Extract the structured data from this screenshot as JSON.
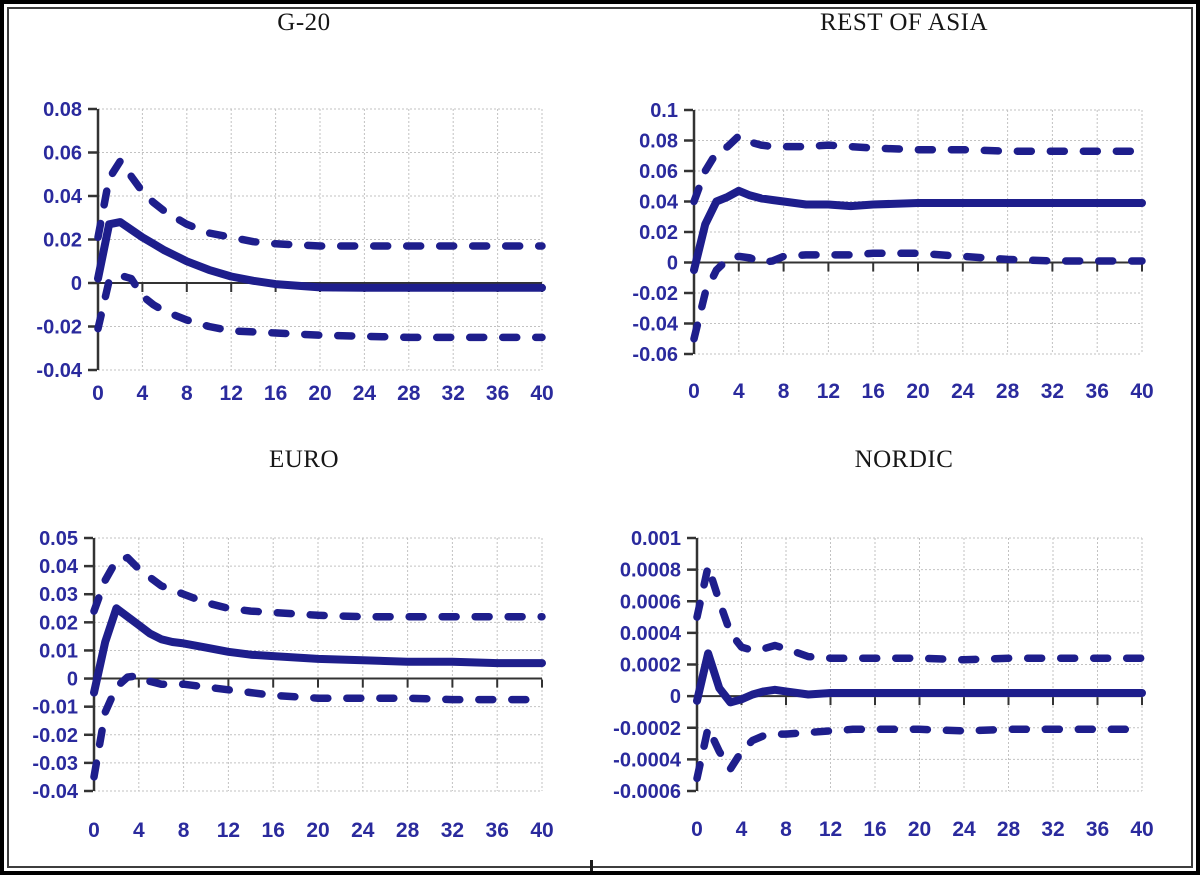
{
  "colors": {
    "line_navy": "#1e1e8c",
    "tick_label_navy": "#2a2a9d",
    "title_black": "#161616",
    "grid_gray": "#c2c2c2",
    "axis_gray": "#333333"
  },
  "chart_data": [
    {
      "type": "line",
      "title": "G-20",
      "xlabel": "",
      "ylabel": "",
      "xlim": [
        0,
        40
      ],
      "ylim": [
        -0.04,
        0.08
      ],
      "xticks": [
        0,
        4,
        8,
        12,
        16,
        20,
        24,
        28,
        32,
        36,
        40
      ],
      "xtick_labels": [
        "0",
        "4",
        "8",
        "12",
        "16",
        "20",
        "24",
        "28",
        "32",
        "36",
        "40"
      ],
      "yticks": [
        0.08,
        0.06,
        0.04,
        0.02,
        0,
        -0.02,
        -0.04
      ],
      "ytick_labels": [
        "0.08",
        "0.06",
        "0.04",
        "0.02",
        "0",
        "-0.02",
        "-0.04"
      ],
      "grid": true,
      "legend": "none",
      "x": [
        0,
        1,
        2,
        3,
        4,
        5,
        6,
        7,
        8,
        10,
        12,
        14,
        16,
        20,
        24,
        28,
        32,
        36,
        40
      ],
      "series": [
        {
          "name": "central",
          "style": "solid",
          "values": [
            0.002,
            0.027,
            0.028,
            0.0245,
            0.021,
            0.018,
            0.015,
            0.0125,
            0.01,
            0.006,
            0.003,
            0.001,
            -0.0005,
            -0.002,
            -0.0022,
            -0.0022,
            -0.0022,
            -0.0022,
            -0.0022
          ]
        },
        {
          "name": "upper",
          "style": "dashed",
          "values": [
            0.021,
            0.048,
            0.056,
            0.049,
            0.042,
            0.037,
            0.033,
            0.03,
            0.027,
            0.023,
            0.021,
            0.019,
            0.018,
            0.017,
            0.017,
            0.017,
            0.017,
            0.017,
            0.017
          ]
        },
        {
          "name": "lower",
          "style": "dashed",
          "values": [
            -0.021,
            0.001,
            0.0035,
            0.002,
            -0.006,
            -0.01,
            -0.013,
            -0.015,
            -0.017,
            -0.02,
            -0.022,
            -0.0225,
            -0.023,
            -0.024,
            -0.0245,
            -0.025,
            -0.025,
            -0.025,
            -0.025
          ]
        }
      ]
    },
    {
      "type": "line",
      "title": "REST OF ASIA",
      "xlabel": "",
      "ylabel": "",
      "xlim": [
        0,
        40
      ],
      "ylim": [
        -0.06,
        0.1
      ],
      "xticks": [
        0,
        4,
        8,
        12,
        16,
        20,
        24,
        28,
        32,
        36,
        40
      ],
      "xtick_labels": [
        "0",
        "4",
        "8",
        "12",
        "16",
        "20",
        "24",
        "28",
        "32",
        "36",
        "40"
      ],
      "yticks": [
        0.1,
        0.08,
        0.06,
        0.04,
        0.02,
        0,
        -0.02,
        -0.04,
        -0.06
      ],
      "ytick_labels": [
        "0.1",
        "0.08",
        "0.06",
        "0.04",
        "0.02",
        "0",
        "-0.02",
        "-0.04",
        "-0.06"
      ],
      "grid": true,
      "legend": "none",
      "x": [
        0,
        1,
        2,
        3,
        4,
        5,
        6,
        7,
        8,
        10,
        12,
        14,
        16,
        20,
        24,
        28,
        32,
        36,
        40
      ],
      "series": [
        {
          "name": "central",
          "style": "solid",
          "values": [
            -0.005,
            0.025,
            0.04,
            0.043,
            0.047,
            0.044,
            0.042,
            0.041,
            0.04,
            0.038,
            0.038,
            0.037,
            0.038,
            0.039,
            0.039,
            0.039,
            0.039,
            0.039,
            0.039
          ]
        },
        {
          "name": "upper",
          "style": "dashed",
          "values": [
            0.04,
            0.06,
            0.072,
            0.076,
            0.083,
            0.079,
            0.077,
            0.076,
            0.076,
            0.076,
            0.077,
            0.076,
            0.075,
            0.074,
            0.074,
            0.073,
            0.073,
            0.073,
            0.073
          ]
        },
        {
          "name": "lower",
          "style": "dashed",
          "values": [
            -0.05,
            -0.02,
            -0.005,
            0.002,
            0.004,
            0.003,
            0.0,
            0.001,
            0.004,
            0.005,
            0.005,
            0.005,
            0.006,
            0.006,
            0.004,
            0.002,
            0.001,
            0.001,
            0.001
          ]
        }
      ]
    },
    {
      "type": "line",
      "title": "EURO",
      "xlabel": "",
      "ylabel": "",
      "xlim": [
        0,
        40
      ],
      "ylim": [
        -0.04,
        0.05
      ],
      "xticks": [
        0,
        4,
        8,
        12,
        16,
        20,
        24,
        28,
        32,
        36,
        40
      ],
      "xtick_labels": [
        "0",
        "4",
        "8",
        "12",
        "16",
        "20",
        "24",
        "28",
        "32",
        "36",
        "40"
      ],
      "yticks": [
        0.05,
        0.04,
        0.03,
        0.02,
        0.01,
        0,
        -0.01,
        -0.02,
        -0.03,
        -0.04
      ],
      "ytick_labels": [
        "0.05",
        "0.04",
        "0.03",
        "0.02",
        "0.01",
        "0",
        "-0.01",
        "-0.02",
        "-0.03",
        "-0.04"
      ],
      "grid": true,
      "legend": "none",
      "x": [
        0,
        1,
        2,
        3,
        4,
        5,
        6,
        7,
        8,
        10,
        12,
        14,
        16,
        20,
        24,
        28,
        32,
        36,
        40
      ],
      "series": [
        {
          "name": "central",
          "style": "solid",
          "values": [
            -0.005,
            0.013,
            0.025,
            0.022,
            0.019,
            0.016,
            0.014,
            0.013,
            0.0125,
            0.011,
            0.0095,
            0.0085,
            0.008,
            0.007,
            0.0065,
            0.006,
            0.006,
            0.0055,
            0.0055
          ]
        },
        {
          "name": "upper",
          "style": "dashed",
          "values": [
            0.024,
            0.035,
            0.042,
            0.043,
            0.039,
            0.036,
            0.033,
            0.0315,
            0.03,
            0.027,
            0.025,
            0.024,
            0.0235,
            0.0225,
            0.022,
            0.022,
            0.022,
            0.022,
            0.022
          ]
        },
        {
          "name": "lower",
          "style": "dashed",
          "values": [
            -0.035,
            -0.012,
            -0.003,
            0.0005,
            0.001,
            -0.001,
            -0.002,
            -0.002,
            -0.002,
            -0.003,
            -0.004,
            -0.005,
            -0.006,
            -0.007,
            -0.007,
            -0.007,
            -0.0075,
            -0.0075,
            -0.0075
          ]
        }
      ]
    },
    {
      "type": "line",
      "title": "NORDIC",
      "xlabel": "",
      "ylabel": "",
      "xlim": [
        0,
        40
      ],
      "ylim": [
        -0.0006,
        0.001
      ],
      "xticks": [
        0,
        4,
        8,
        12,
        16,
        20,
        24,
        28,
        32,
        36,
        40
      ],
      "xtick_labels": [
        "0",
        "4",
        "8",
        "12",
        "16",
        "20",
        "24",
        "28",
        "32",
        "36",
        "40"
      ],
      "yticks": [
        0.001,
        0.0008,
        0.0006,
        0.0004,
        0.0002,
        0,
        -0.0002,
        -0.0004,
        -0.0006
      ],
      "ytick_labels": [
        "0.001",
        "0.0008",
        "0.0006",
        "0.0004",
        "0.0002",
        "0",
        "-0.0002",
        "-0.0004",
        "-0.0006"
      ],
      "grid": true,
      "legend": "none",
      "x": [
        0,
        1,
        2,
        3,
        4,
        5,
        6,
        7,
        8,
        10,
        12,
        14,
        16,
        20,
        24,
        28,
        32,
        36,
        40
      ],
      "series": [
        {
          "name": "central",
          "style": "solid",
          "values": [
            -3e-05,
            0.00027,
            5e-05,
            -4e-05,
            -2e-05,
            1e-05,
            3e-05,
            4e-05,
            3e-05,
            1e-05,
            2e-05,
            2e-05,
            2e-05,
            2e-05,
            2e-05,
            2e-05,
            2e-05,
            2e-05,
            2e-05
          ]
        },
        {
          "name": "upper",
          "style": "dashed",
          "values": [
            0.0005,
            0.00082,
            0.0006,
            0.0004,
            0.00031,
            0.00029,
            0.0003,
            0.00032,
            0.0003,
            0.00025,
            0.00024,
            0.00024,
            0.00024,
            0.00024,
            0.00023,
            0.00024,
            0.00024,
            0.00024,
            0.00024
          ]
        },
        {
          "name": "lower",
          "style": "dashed",
          "values": [
            -0.00052,
            -0.0002,
            -0.00035,
            -0.00046,
            -0.00035,
            -0.00028,
            -0.00025,
            -0.00024,
            -0.00024,
            -0.00023,
            -0.00022,
            -0.00021,
            -0.00021,
            -0.00021,
            -0.00022,
            -0.00021,
            -0.00021,
            -0.00021,
            -0.00021
          ]
        }
      ]
    }
  ]
}
